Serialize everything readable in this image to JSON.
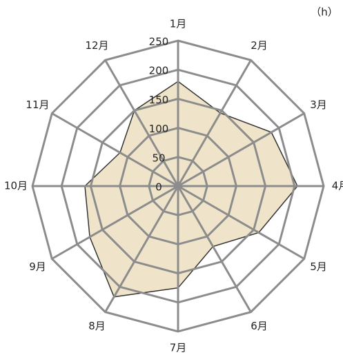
{
  "chart_data": {
    "type": "radar",
    "unit_label": "（h）",
    "categories": [
      "1月",
      "2月",
      "3月",
      "4月",
      "5月",
      "6月",
      "7月",
      "8月",
      "9月",
      "10月",
      "11月",
      "12月"
    ],
    "values": [
      180,
      145,
      185,
      205,
      160,
      120,
      175,
      220,
      175,
      160,
      115,
      150
    ],
    "color": "#efe4c9",
    "ylim": [
      0,
      250
    ],
    "yticks": [
      0,
      50,
      100,
      150,
      200,
      250
    ],
    "grid": true
  }
}
